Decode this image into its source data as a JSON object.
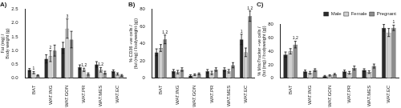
{
  "chart_data": [
    {
      "type": "bar",
      "title": "A)",
      "y_label": [
        "Fat (mg) /",
        "Body weight (g)"
      ],
      "categories": [
        "BAT",
        "WAT.ING",
        "WAT.GON",
        "WAT.PR",
        "WAT.MES",
        "WAT.EC"
      ],
      "series": [
        {
          "color": "#2b2b2b",
          "values": [
            0.3,
            0.7,
            1.1,
            0.4,
            0.5,
            0.25
          ],
          "errors": [
            0.05,
            0.15,
            0.2,
            0.08,
            0.1,
            0.05
          ]
        },
        {
          "color": "#d0d0d0",
          "values": [
            0.2,
            0.8,
            1.8,
            0.3,
            0.3,
            0.15
          ],
          "errors": [
            0.04,
            0.2,
            0.35,
            0.06,
            0.08,
            0.04
          ]
        },
        {
          "color": "#8c8c8c",
          "values": [
            0.1,
            1.0,
            1.4,
            0.15,
            0.2,
            0.1
          ],
          "errors": [
            0.02,
            0.2,
            0.3,
            0.04,
            0.05,
            0.03
          ]
        }
      ],
      "annotations": [
        {
          "category": "BAT",
          "series": 1,
          "text": "1"
        },
        {
          "category": "WAT.ING",
          "series": 1,
          "text": "2"
        },
        {
          "category": "WAT.GON",
          "series": 1,
          "text": "3"
        },
        {
          "category": "WAT.PR",
          "series": 1,
          "text": "1,2"
        },
        {
          "category": "WAT.MES",
          "series": 1,
          "text": "1,2"
        }
      ],
      "ylim": [
        0,
        2.5
      ],
      "yticks": [
        {
          "value": 0,
          "label": "0.0"
        },
        {
          "value": 0.5,
          "label": "0.5"
        },
        {
          "value": 1,
          "label": "1.0"
        },
        {
          "value": 1.5,
          "label": "1.5"
        },
        {
          "value": 2,
          "label": "2.0"
        },
        {
          "value": 2.5,
          "label": "2.5"
        }
      ],
      "grid": false
    },
    {
      "type": "bar",
      "title": "B)",
      "y_label": [
        "% CD36 +ve cells /",
        "(fat (mg) / bodyweight (g))"
      ],
      "categories": [
        "BAT",
        "WAT.ING",
        "WAT.GON",
        "WAT.PR",
        "WAT.MES",
        "WAT.EC"
      ],
      "series": [
        {
          "color": "#2b2b2b",
          "values": [
            30,
            8,
            3,
            8,
            10,
            45
          ],
          "errors": [
            4,
            2,
            1,
            2,
            2,
            6
          ]
        },
        {
          "color": "#d0d0d0",
          "values": [
            35,
            7,
            4,
            6,
            8,
            30
          ],
          "errors": [
            4,
            2,
            1,
            2,
            2,
            5
          ]
        },
        {
          "color": "#8c8c8c",
          "values": [
            45,
            10,
            5,
            10,
            15,
            72
          ],
          "errors": [
            5,
            2,
            1,
            2,
            3,
            6
          ]
        }
      ],
      "annotations": [
        {
          "category": "BAT",
          "series": 2,
          "text": "1,2"
        },
        {
          "category": "WAT.EC",
          "series": 0,
          "text": "1"
        },
        {
          "category": "WAT.EC",
          "series": 2,
          "text": "1,2"
        }
      ],
      "ylim": [
        0,
        80
      ],
      "yticks": [
        0,
        20,
        40,
        60,
        80
      ],
      "grid": false
    },
    {
      "type": "bar",
      "title": "C)",
      "y_label": [
        "% MitoTracker +ve cells /",
        "(fat (mg) / bodyweight (g))"
      ],
      "categories": [
        "BAT",
        "WAT.ING",
        "WAT.GON",
        "WAT.PR",
        "WAT.MES",
        "WAT.EC"
      ],
      "series": [
        {
          "name": "Male",
          "color": "#2b2b2b",
          "values": [
            35,
            10,
            3,
            10,
            12,
            75
          ],
          "errors": [
            4,
            2,
            1,
            2,
            2,
            5
          ]
        },
        {
          "name": "Female",
          "color": "#d0d0d0",
          "values": [
            40,
            8,
            4,
            8,
            9,
            68
          ],
          "errors": [
            4,
            2,
            1,
            2,
            2,
            6
          ]
        },
        {
          "name": "Pregnant",
          "color": "#8c8c8c",
          "values": [
            50,
            12,
            6,
            15,
            18,
            75
          ],
          "errors": [
            5,
            2,
            1,
            3,
            3,
            4
          ]
        }
      ],
      "annotations": [
        {
          "category": "BAT",
          "series": 2,
          "text": "1,2"
        },
        {
          "category": "WAT.EC",
          "series": 2,
          "text": "1"
        }
      ],
      "ylim": [
        0,
        80
      ],
      "yticks": [
        0,
        20,
        40,
        60,
        80
      ],
      "grid": false,
      "legend": "top right"
    }
  ]
}
